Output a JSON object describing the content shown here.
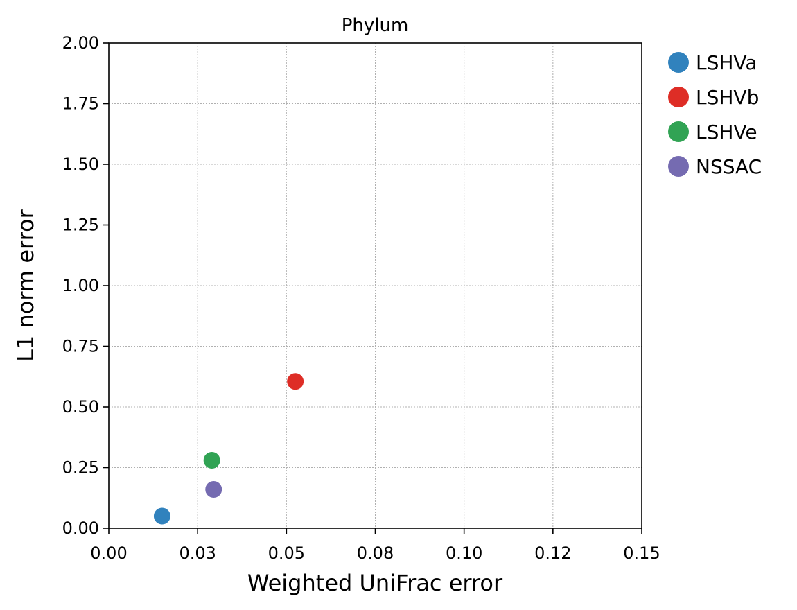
{
  "chart_data": {
    "type": "scatter",
    "title": "Phylum",
    "xlabel": "Weighted UniFrac error",
    "ylabel": "L1 norm error",
    "xlim": [
      0,
      0.15
    ],
    "ylim": [
      0,
      2.0
    ],
    "x_ticks": [
      0.0,
      0.025,
      0.05,
      0.075,
      0.1,
      0.125,
      0.15
    ],
    "x_tick_labels": [
      "0.00",
      "0.03",
      "0.05",
      "0.08",
      "0.10",
      "0.12",
      "0.15"
    ],
    "y_ticks": [
      0.0,
      0.25,
      0.5,
      0.75,
      1.0,
      1.25,
      1.5,
      1.75,
      2.0
    ],
    "y_tick_labels": [
      "0.00",
      "0.25",
      "0.50",
      "0.75",
      "1.00",
      "1.25",
      "1.50",
      "1.75",
      "2.00"
    ],
    "grid": true,
    "legend_position": "outside-right",
    "series": [
      {
        "name": "LSHVa",
        "color": "#3182bd",
        "x": 0.015,
        "y": 0.05
      },
      {
        "name": "LSHVb",
        "color": "#de2d26",
        "x": 0.0525,
        "y": 0.605
      },
      {
        "name": "LSHVe",
        "color": "#31a354",
        "x": 0.029,
        "y": 0.28
      },
      {
        "name": "NSSAC",
        "color": "#756bb1",
        "x": 0.0295,
        "y": 0.16
      }
    ]
  }
}
